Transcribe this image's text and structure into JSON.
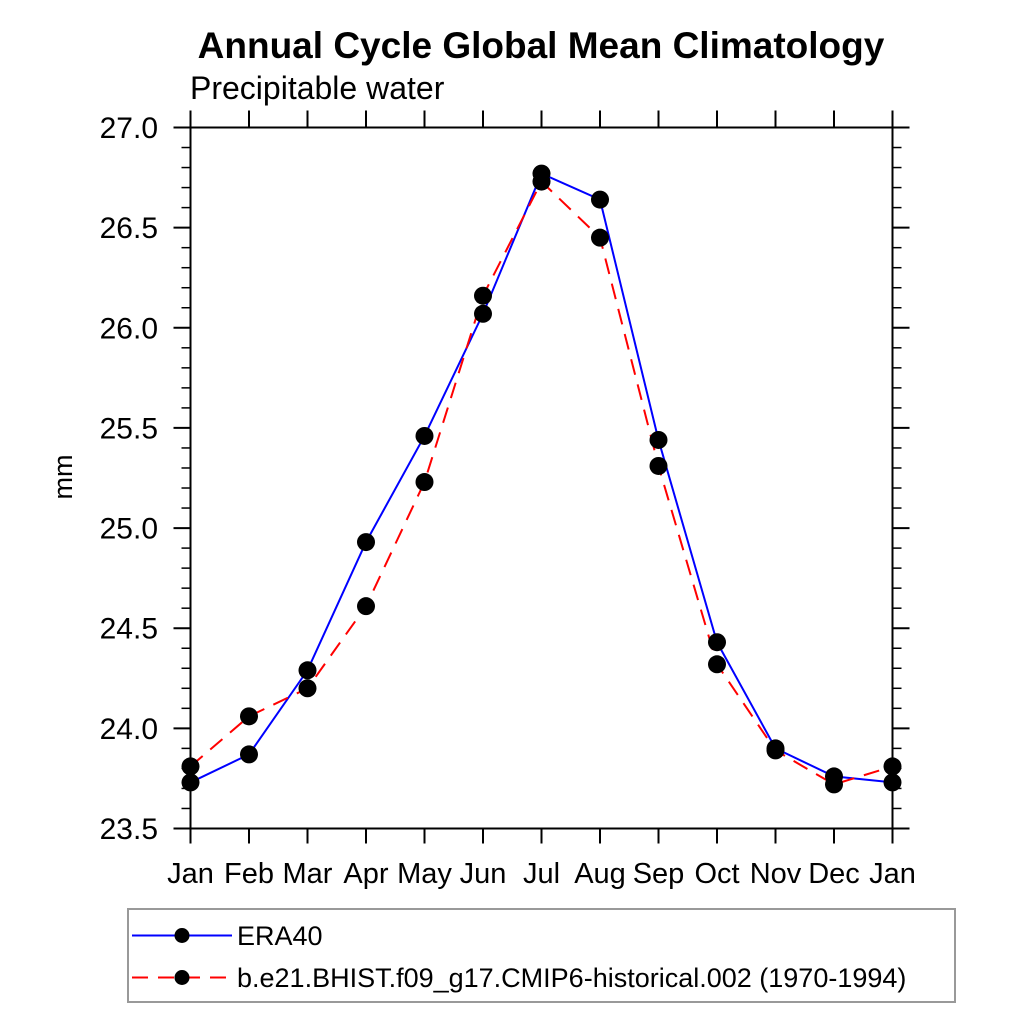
{
  "chart_data": {
    "type": "line",
    "title": "Annual Cycle Global Mean Climatology",
    "subtitle": "Precipitable water",
    "ylabel": "mm",
    "x_categories": [
      "Jan",
      "Feb",
      "Mar",
      "Apr",
      "May",
      "Jun",
      "Jul",
      "Aug",
      "Sep",
      "Oct",
      "Nov",
      "Dec",
      "Jan"
    ],
    "ylim": [
      23.5,
      27.0
    ],
    "y_major_step": 0.5,
    "y_minor_step": 0.1,
    "grid": false,
    "legend_position": "bottom-left-box",
    "marker": "filled-circle",
    "marker_color": "#000000",
    "axis_color": "#000000",
    "legend_border_color": "#999999",
    "series": [
      {
        "name": "ERA40",
        "color": "#0000ff",
        "line_style": "solid",
        "values": [
          23.73,
          23.87,
          24.29,
          24.93,
          25.46,
          26.07,
          26.77,
          26.64,
          25.44,
          24.43,
          23.9,
          23.76,
          23.73
        ]
      },
      {
        "name": "b.e21.BHIST.f09_g17.CMIP6-historical.002 (1970-1994)",
        "color": "#ff0000",
        "line_style": "dashed",
        "values": [
          23.81,
          24.06,
          24.2,
          24.61,
          25.23,
          26.16,
          26.73,
          26.45,
          25.31,
          24.32,
          23.89,
          23.72,
          23.81
        ]
      }
    ]
  }
}
